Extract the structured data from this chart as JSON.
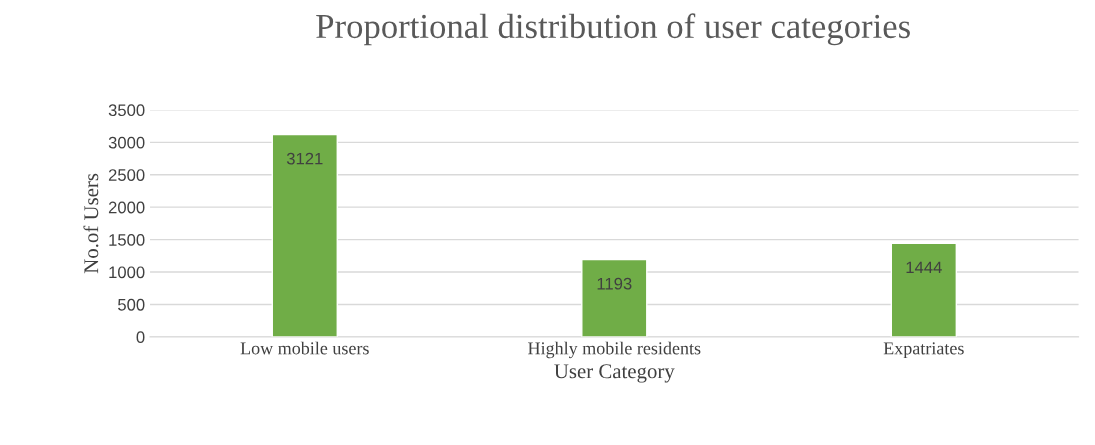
{
  "chart_data": {
    "type": "bar",
    "title": "Proportional distribution of user categories",
    "xlabel": "User Category",
    "ylabel": "No.of Users",
    "categories": [
      "Low mobile users",
      "Highly mobile residents",
      "Expatriates"
    ],
    "values": [
      3121,
      1193,
      1444
    ],
    "color": "#70ad47",
    "ylim": [
      0,
      3500
    ],
    "yticks": [
      0,
      500,
      1000,
      1500,
      2000,
      2500,
      3000,
      3500
    ],
    "grid": "y",
    "data_labels": true,
    "legend": false
  }
}
